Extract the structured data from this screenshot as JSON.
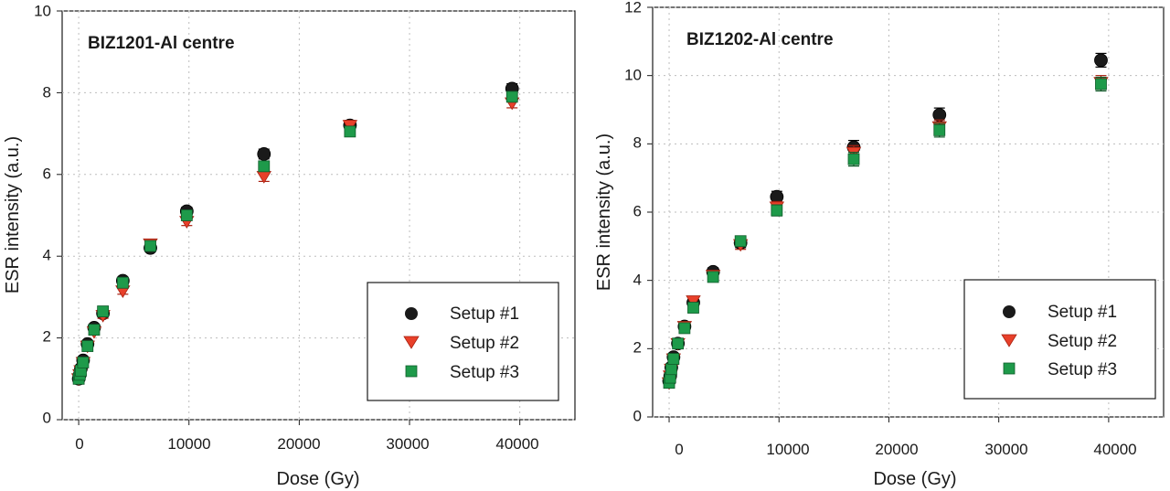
{
  "chart_data": [
    {
      "type": "scatter",
      "title": "BIZ1201-Al centre",
      "xlabel": "Dose (Gy)",
      "ylabel": "ESR intensity (a.u.)",
      "xlim": [
        -1500,
        45000
      ],
      "ylim": [
        0,
        10
      ],
      "xticks": [
        "0",
        "10000",
        "20000",
        "30000",
        "40000"
      ],
      "yticks": [
        "0",
        "2",
        "4",
        "6",
        "8",
        "10"
      ],
      "grid": true,
      "legend_position": "bottom-right",
      "series": [
        {
          "name": "Setup #1",
          "marker": "circle",
          "color": "#1a1a1a",
          "x": [
            0,
            100,
            200,
            400,
            800,
            1400,
            2200,
            4000,
            6500,
            9800,
            16800,
            24600,
            39300
          ],
          "y": [
            1.0,
            1.1,
            1.25,
            1.45,
            1.85,
            2.25,
            2.6,
            3.4,
            4.2,
            5.1,
            6.5,
            7.2,
            8.1
          ],
          "err": [
            0.05,
            0.05,
            0.05,
            0.05,
            0.06,
            0.06,
            0.07,
            0.08,
            0.09,
            0.1,
            0.12,
            0.12,
            0.12
          ]
        },
        {
          "name": "Setup #2",
          "marker": "triangle-down",
          "color": "#e8402a",
          "x": [
            0,
            100,
            200,
            400,
            800,
            1400,
            2200,
            4000,
            6500,
            9800,
            16800,
            24600,
            39300
          ],
          "y": [
            1.0,
            1.1,
            1.2,
            1.4,
            1.8,
            2.15,
            2.55,
            3.15,
            4.3,
            4.85,
            5.95,
            7.2,
            7.75
          ],
          "err": [
            0.05,
            0.05,
            0.05,
            0.05,
            0.06,
            0.06,
            0.07,
            0.08,
            0.09,
            0.1,
            0.12,
            0.12,
            0.12
          ]
        },
        {
          "name": "Setup #3",
          "marker": "square",
          "color": "#1e9a4a",
          "x": [
            0,
            100,
            200,
            400,
            800,
            1400,
            2200,
            4000,
            6500,
            9800,
            16800,
            24600,
            39300
          ],
          "y": [
            1.0,
            1.1,
            1.2,
            1.4,
            1.8,
            2.2,
            2.65,
            3.35,
            4.25,
            5.0,
            6.2,
            7.05,
            7.9
          ],
          "err": [
            0.05,
            0.05,
            0.05,
            0.05,
            0.06,
            0.06,
            0.07,
            0.08,
            0.09,
            0.1,
            0.12,
            0.12,
            0.12
          ]
        }
      ]
    },
    {
      "type": "scatter",
      "title": "BIZ1202-Al centre",
      "xlabel": "Dose (Gy)",
      "ylabel": "ESR intensity (a.u.)",
      "xlim": [
        -1500,
        45000
      ],
      "ylim": [
        0,
        12
      ],
      "xticks": [
        "0",
        "10000",
        "20000",
        "30000",
        "40000"
      ],
      "yticks": [
        "0",
        "2",
        "4",
        "6",
        "8",
        "10",
        "12"
      ],
      "grid": true,
      "legend_position": "bottom-right",
      "series": [
        {
          "name": "Setup #1",
          "marker": "circle",
          "color": "#1a1a1a",
          "x": [
            0,
            100,
            200,
            400,
            800,
            1400,
            2200,
            4000,
            6500,
            9800,
            16800,
            24600,
            39300
          ],
          "y": [
            1.05,
            1.2,
            1.45,
            1.75,
            2.15,
            2.65,
            3.35,
            4.25,
            5.1,
            6.45,
            7.9,
            8.85,
            10.45
          ],
          "err": [
            0.06,
            0.06,
            0.06,
            0.07,
            0.07,
            0.08,
            0.1,
            0.12,
            0.14,
            0.16,
            0.2,
            0.2,
            0.2
          ]
        },
        {
          "name": "Setup #2",
          "marker": "triangle-down",
          "color": "#e8402a",
          "x": [
            0,
            100,
            200,
            400,
            800,
            1400,
            2200,
            4000,
            6500,
            9800,
            16800,
            24600,
            39300
          ],
          "y": [
            1.0,
            1.2,
            1.4,
            1.7,
            2.15,
            2.65,
            3.4,
            4.15,
            5.05,
            6.15,
            7.75,
            8.5,
            9.8
          ],
          "err": [
            0.06,
            0.06,
            0.06,
            0.07,
            0.07,
            0.08,
            0.1,
            0.12,
            0.14,
            0.16,
            0.2,
            0.2,
            0.2
          ]
        },
        {
          "name": "Setup #3",
          "marker": "square",
          "color": "#1e9a4a",
          "x": [
            0,
            100,
            200,
            400,
            800,
            1400,
            2200,
            4000,
            6500,
            9800,
            16800,
            24600,
            39300
          ],
          "y": [
            1.0,
            1.15,
            1.4,
            1.7,
            2.15,
            2.6,
            3.2,
            4.1,
            5.15,
            6.05,
            7.55,
            8.4,
            9.75
          ],
          "err": [
            0.06,
            0.06,
            0.06,
            0.07,
            0.07,
            0.08,
            0.1,
            0.12,
            0.14,
            0.16,
            0.2,
            0.2,
            0.2
          ]
        }
      ]
    }
  ]
}
